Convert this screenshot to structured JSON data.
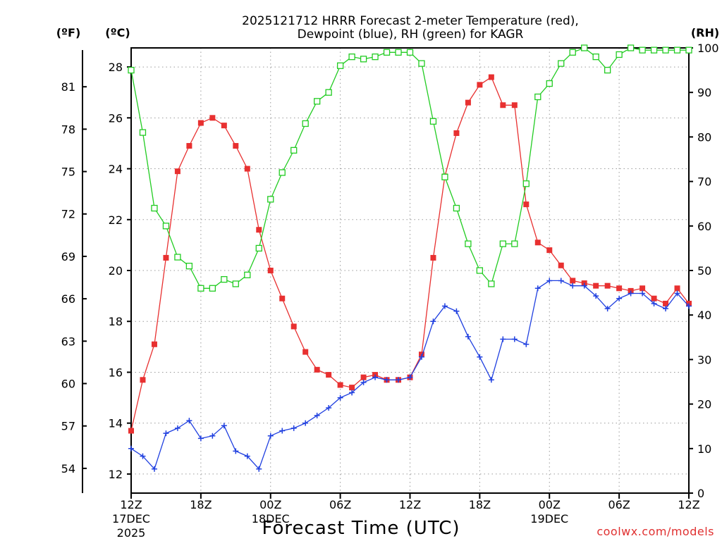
{
  "chart_data": {
    "type": "line",
    "title_line1": "2025121712 HRRR Forecast 2-meter Temperature (red),",
    "title_line2": "Dewpoint (blue), RH (green) for KAGR",
    "xlabel": "Forecast Time (UTC)",
    "credit": "coolwx.com/models",
    "unit_f": "(ºF)",
    "unit_c": "(ºC)",
    "unit_rh": "(RH)",
    "x_unit": "forecast hour",
    "x_range": [
      0,
      48
    ],
    "x_ticks": [
      {
        "hour": 0,
        "label": "12Z",
        "date": "17DEC",
        "year": "2025"
      },
      {
        "hour": 6,
        "label": "18Z",
        "date": "",
        "year": ""
      },
      {
        "hour": 12,
        "label": "00Z",
        "date": "18DEC",
        "year": ""
      },
      {
        "hour": 18,
        "label": "06Z",
        "date": "",
        "year": ""
      },
      {
        "hour": 24,
        "label": "12Z",
        "date": "",
        "year": ""
      },
      {
        "hour": 30,
        "label": "18Z",
        "date": "",
        "year": ""
      },
      {
        "hour": 36,
        "label": "00Z",
        "date": "19DEC",
        "year": ""
      },
      {
        "hour": 42,
        "label": "06Z",
        "date": "",
        "year": ""
      },
      {
        "hour": 48,
        "label": "12Z",
        "date": "",
        "year": ""
      }
    ],
    "ylim_c": [
      11.25,
      28.75
    ],
    "yticks_c": [
      "12",
      "14",
      "16",
      "18",
      "20",
      "22",
      "24",
      "26",
      "28"
    ],
    "yticks_f": [
      "54",
      "57",
      "60",
      "63",
      "66",
      "69",
      "72",
      "75",
      "78",
      "81"
    ],
    "ylim_rh": [
      0,
      100
    ],
    "yticks_rh": [
      "0",
      "10",
      "20",
      "30",
      "40",
      "50",
      "60",
      "70",
      "80",
      "90",
      "100"
    ],
    "grid": true,
    "series": [
      {
        "name": "2-meter Temperature",
        "unit": "C",
        "color": "#e83030",
        "marker": "filled-square",
        "axis": "left",
        "values": [
          13.7,
          15.7,
          17.1,
          20.5,
          23.9,
          24.9,
          25.8,
          26.0,
          25.7,
          24.9,
          24.0,
          21.6,
          20.0,
          18.9,
          17.8,
          16.8,
          16.1,
          15.9,
          15.5,
          15.4,
          15.8,
          15.9,
          15.7,
          15.7,
          15.8,
          16.7,
          20.5,
          23.7,
          25.4,
          26.6,
          27.3,
          27.6,
          26.5,
          26.5,
          22.6,
          21.1,
          20.8,
          20.2,
          19.6,
          19.5,
          19.4,
          19.4,
          19.3,
          19.2,
          19.3,
          18.9,
          18.7,
          19.3,
          18.7
        ]
      },
      {
        "name": "Dewpoint",
        "unit": "C",
        "color": "#2040e0",
        "marker": "plus",
        "axis": "left",
        "values": [
          13.0,
          12.7,
          12.2,
          13.6,
          13.8,
          14.1,
          13.4,
          13.5,
          13.9,
          12.9,
          12.7,
          12.2,
          13.5,
          13.7,
          13.8,
          14.0,
          14.3,
          14.6,
          15.0,
          15.2,
          15.6,
          15.8,
          15.7,
          15.7,
          15.8,
          16.6,
          18.0,
          18.6,
          18.4,
          17.4,
          16.6,
          15.7,
          17.3,
          17.3,
          17.1,
          19.3,
          19.6,
          19.6,
          19.4,
          19.4,
          19.0,
          18.5,
          18.9,
          19.1,
          19.1,
          18.7,
          18.5,
          19.1,
          18.6
        ]
      },
      {
        "name": "RH",
        "unit": "%",
        "color": "#22cc22",
        "marker": "open-square",
        "axis": "right",
        "values": [
          95,
          81,
          64,
          60,
          53,
          51,
          46,
          46,
          48,
          47,
          49,
          55,
          66,
          72,
          77,
          83,
          88,
          90,
          96,
          98,
          97.5,
          98,
          99,
          99,
          99,
          96.5,
          83.5,
          71,
          64,
          56,
          50,
          47,
          56,
          56,
          69.5,
          89,
          92,
          96.5,
          99,
          100,
          98,
          95,
          98.5,
          100,
          99.5,
          99.5,
          99.5,
          99.5,
          99.5
        ]
      }
    ]
  }
}
